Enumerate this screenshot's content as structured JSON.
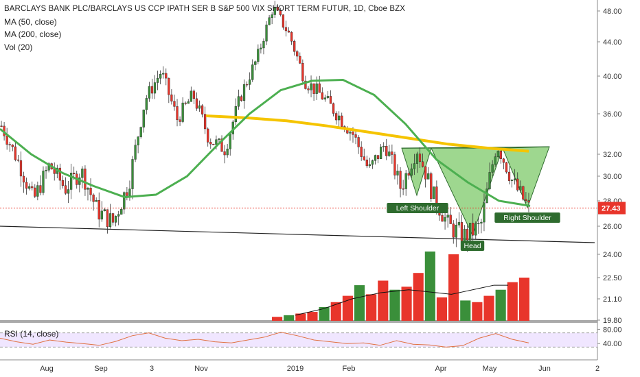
{
  "legend": {
    "title": "BARCLAYS BANK PLC/BARCLAYS US CCP IPATH SER B S&P 500 VIX SHORT TERM FUTUR, 1D, Cboe BZX",
    "ma50": "MA (50, close)",
    "ma200": "MA (200, close)",
    "vol": "Vol (20)"
  },
  "rsi_label": "RSI (14, close)",
  "price_badge": "27.43",
  "colors": {
    "up": "#3a8f3a",
    "down": "#e8352b",
    "ma50": "#4caf50",
    "ma200": "#f5c400",
    "pattern_fill": "#7ec96a",
    "rsi_band": "#f0e6ff",
    "price_badge": "#e8352b"
  },
  "annotations": {
    "left_shoulder": "Left Shoulder",
    "head": "Head",
    "right_shoulder": "Right Shoulder"
  },
  "chart_data": {
    "type": "candlestick",
    "price_axis_ticks": [
      "48.00",
      "44.00",
      "40.00",
      "36.00",
      "32.00",
      "30.00",
      "28.00",
      "26.00",
      "24.00",
      "22.50",
      "21.10",
      "19.80"
    ],
    "rsi_axis_ticks": [
      "80.00",
      "40.00"
    ],
    "time_axis_ticks": [
      "Aug",
      "Sep",
      "3",
      "Nov",
      "2019",
      "Feb",
      "Apr",
      "May",
      "Jun",
      "2"
    ],
    "last_price": 27.43,
    "price_anchors": [
      {
        "label": "Jul",
        "v": 34.8
      },
      {
        "label": "late Jul",
        "v": 31.5
      },
      {
        "label": "Aug",
        "v": 28.0
      },
      {
        "label": "Aug",
        "v": 31.0
      },
      {
        "label": "Sep",
        "v": 29.0
      },
      {
        "label": "Sep",
        "v": 30.5
      },
      {
        "label": "late Sep",
        "v": 27.2
      },
      {
        "label": "Oct 3",
        "v": 26.3
      },
      {
        "label": "Oct",
        "v": 29.5
      },
      {
        "label": "Oct",
        "v": 37.5
      },
      {
        "label": "Oct",
        "v": 40.5
      },
      {
        "label": "Nov",
        "v": 35.5
      },
      {
        "label": "Nov",
        "v": 38.0
      },
      {
        "label": "Nov",
        "v": 33.5
      },
      {
        "label": "Dec",
        "v": 32.5
      },
      {
        "label": "Dec",
        "v": 38.0
      },
      {
        "label": "Dec",
        "v": 42.0
      },
      {
        "label": "2019",
        "v": 48.5
      },
      {
        "label": "Jan",
        "v": 45.0
      },
      {
        "label": "Jan",
        "v": 39.5
      },
      {
        "label": "Jan",
        "v": 38.0
      },
      {
        "label": "Feb",
        "v": 36.0
      },
      {
        "label": "Feb",
        "v": 34.0
      },
      {
        "label": "Mar",
        "v": 30.5
      },
      {
        "label": "Mar",
        "v": 33.0
      },
      {
        "label": "Mar",
        "v": 29.0
      },
      {
        "label": "Apr",
        "v": 32.5
      },
      {
        "label": "Apr",
        "v": 28.5
      },
      {
        "label": "Apr",
        "v": 26.0
      },
      {
        "label": "Apr",
        "v": 25.3
      },
      {
        "label": "May",
        "v": 26.0
      },
      {
        "label": "May",
        "v": 33.0
      },
      {
        "label": "May",
        "v": 29.5
      },
      {
        "label": "May",
        "v": 27.43
      }
    ],
    "ma50": [
      34.5,
      32.0,
      30.3,
      29.2,
      28.3,
      28.5,
      30.0,
      33.0,
      36.0,
      38.5,
      39.5,
      39.6,
      38.0,
      35.0,
      31.5,
      29.5,
      28.0,
      27.6
    ],
    "ma200": [
      35.8,
      35.6,
      35.3,
      34.8,
      34.2,
      33.6,
      33.0,
      32.6,
      32.3
    ],
    "volume": {
      "values": [
        20.0,
        20.1,
        20.2,
        20.3,
        20.6,
        20.9,
        21.3,
        22.0,
        21.4,
        22.3,
        21.7,
        21.9,
        22.8,
        24.2,
        21.2,
        24.0,
        21.0,
        20.9,
        21.3,
        21.7,
        22.2,
        22.5
      ],
      "ma": [
        20.1,
        20.3,
        20.5,
        20.8,
        21.1,
        21.3,
        21.5,
        21.6,
        21.7,
        21.6,
        21.5,
        21.4,
        21.6,
        21.8,
        22.0,
        22.0
      ]
    },
    "rsi": {
      "band": [
        30,
        70
      ],
      "values": [
        55,
        45,
        38,
        50,
        44,
        40,
        35,
        46,
        62,
        70,
        55,
        48,
        52,
        45,
        42,
        50,
        58,
        72,
        62,
        50,
        45,
        40,
        42,
        35,
        48,
        38,
        36,
        30,
        34,
        55,
        68,
        52,
        42
      ]
    },
    "neckline_y": [
      32.6,
      32.6
    ]
  }
}
